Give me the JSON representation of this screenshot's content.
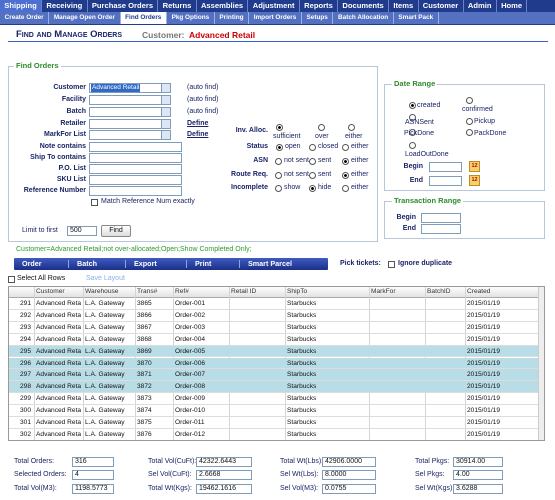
{
  "nav": {
    "main": [
      "Shipping",
      "Receiving",
      "Purchase Orders",
      "Returns",
      "Assemblies",
      "Adjustment",
      "Reports",
      "Documents",
      "Items",
      "Customer",
      "Admin",
      "Home"
    ],
    "main_current": "Shipping",
    "sub": [
      "Create Order",
      "Manage Open Order",
      "Find Orders",
      "Pkg Options",
      "Printing",
      "Import Orders",
      "Setups",
      "Batch Allocation",
      "Smart Pack"
    ],
    "sub_current": "Find Orders"
  },
  "header": {
    "title": "Find and Manage Orders",
    "customer_label": "Customer:",
    "customer": "Advanced Retail"
  },
  "find_orders": {
    "legend": "Find Orders",
    "fields": [
      {
        "label": "Customer",
        "value": "Advanced Retail",
        "note": "(auto find)"
      },
      {
        "label": "Facility",
        "note": "(auto find)"
      },
      {
        "label": "Batch",
        "note": "(auto find)"
      },
      {
        "label": "Retailer",
        "link": "Define"
      },
      {
        "label": "MarkFor List",
        "link": "Define"
      },
      {
        "label": "Note contains"
      },
      {
        "label": "Ship To contains"
      },
      {
        "label": "P.O. List"
      },
      {
        "label": "SKU List"
      },
      {
        "label": "Reference Number"
      }
    ],
    "match_exact": "Match Reference Num exactly",
    "limit_label": "Limit to first",
    "limit": "500",
    "find_button": "Find"
  },
  "filters": [
    {
      "label": "Inv. Alloc.",
      "options": [
        "sufficient",
        "over",
        "either"
      ],
      "selected": 0
    },
    {
      "label": "Status",
      "options": [
        "open",
        "closed",
        "either"
      ],
      "selected": 0
    },
    {
      "label": "ASN",
      "options": [
        "not sent",
        "sent",
        "either"
      ],
      "selected": 2
    },
    {
      "label": "Route Req.",
      "options": [
        "not sent",
        "sent",
        "either"
      ],
      "selected": 2
    },
    {
      "label": "Incomplete",
      "options": [
        "show",
        "hide",
        "either"
      ],
      "selected": 1
    }
  ],
  "date_range": {
    "legend": "Date Range",
    "options": [
      "created",
      "confirmed",
      "ASNSent",
      "Pickup",
      "PickDone",
      "PackDone",
      "LoadOutDone"
    ],
    "selected": 0,
    "begin": "Begin",
    "end": "End",
    "calendar": "12"
  },
  "transaction_range": {
    "legend": "Transaction Range",
    "begin": "Begin",
    "end": "End"
  },
  "criteria": "Customer=Advanced Retail;not over-allocated;Open;Show Completed Only;",
  "toolbar": {
    "buttons": [
      "Order",
      "Batch",
      "Export",
      "Print",
      "Smart Parcel"
    ],
    "pick_label": "Pick tickets:",
    "ignore": "Ignore duplicate"
  },
  "grid": {
    "select_all": "Select All Rows",
    "save_layout": "Save Layout",
    "columns": [
      "Customer",
      "Warehouse",
      "Trans#",
      "Ref#",
      "Retail ID",
      "ShipTo",
      "MarkFor",
      "BatchID",
      "Created"
    ],
    "rows": [
      {
        "cells": [
          "291",
          "Advanced Reta",
          "L.A. Gateway",
          "3865",
          "Order-001",
          "",
          "Starbucks",
          "",
          "",
          "2015/01/19"
        ]
      },
      {
        "cells": [
          "292",
          "Advanced Reta",
          "L.A. Gateway",
          "3866",
          "Order-002",
          "",
          "Starbucks",
          "",
          "",
          "2015/01/19"
        ]
      },
      {
        "cells": [
          "293",
          "Advanced Reta",
          "L.A. Gateway",
          "3867",
          "Order-003",
          "",
          "Starbucks",
          "",
          "",
          "2015/01/19"
        ]
      },
      {
        "cells": [
          "294",
          "Advanced Reta",
          "L.A. Gateway",
          "3868",
          "Order-004",
          "",
          "Starbucks",
          "",
          "",
          "2015/01/19"
        ]
      },
      {
        "cells": [
          "295",
          "Advanced Reta",
          "L.A. Gateway",
          "3869",
          "Order-005",
          "",
          "Starbucks",
          "",
          "",
          "2015/01/19"
        ],
        "selected": true
      },
      {
        "cells": [
          "296",
          "Advanced Reta",
          "L.A. Gateway",
          "3870",
          "Order-006",
          "",
          "Starbucks",
          "",
          "",
          "2015/01/19"
        ],
        "selected": true
      },
      {
        "cells": [
          "297",
          "Advanced Reta",
          "L.A. Gateway",
          "3871",
          "Order-007",
          "",
          "Starbucks",
          "",
          "",
          "2015/01/19"
        ],
        "selected": true
      },
      {
        "cells": [
          "298",
          "Advanced Reta",
          "L.A. Gateway",
          "3872",
          "Order-008",
          "",
          "Starbucks",
          "",
          "",
          "2015/01/19"
        ],
        "selected": true
      },
      {
        "cells": [
          "299",
          "Advanced Reta",
          "L.A. Gateway",
          "3873",
          "Order-009",
          "",
          "Starbucks",
          "",
          "",
          "2015/01/19"
        ]
      },
      {
        "cells": [
          "300",
          "Advanced Reta",
          "L.A. Gateway",
          "3874",
          "Order-010",
          "",
          "Starbucks",
          "",
          "",
          "2015/01/19"
        ]
      },
      {
        "cells": [
          "301",
          "Advanced Reta",
          "L.A. Gateway",
          "3875",
          "Order-011",
          "",
          "Starbucks",
          "",
          "",
          "2015/01/19"
        ]
      },
      {
        "cells": [
          "302",
          "Advanced Reta",
          "L.A. Gateway",
          "3876",
          "Order-012",
          "",
          "Starbucks",
          "",
          "",
          "2015/01/19"
        ]
      }
    ]
  },
  "totals": [
    [
      {
        "label": "Total Orders:",
        "value": "316"
      },
      {
        "label": "Selected Orders:",
        "value": "4"
      },
      {
        "label": "Total Vol(M3):",
        "value": "1198.5773"
      }
    ],
    [
      {
        "label": "Total Vol(CuFt):",
        "value": "42322.6443"
      },
      {
        "label": "Sel Vol(CuFt):",
        "value": "2.6668"
      },
      {
        "label": "Total Wt(Kgs):",
        "value": "19462.1616"
      }
    ],
    [
      {
        "label": "Total Wt(Lbs):",
        "value": "42906.0000"
      },
      {
        "label": "Sel Wt(Lbs):",
        "value": "8.0000"
      },
      {
        "label": "Sel Vol(M3):",
        "value": "0.0755"
      }
    ],
    [
      {
        "label": "Total Pkgs:",
        "value": "30914.00"
      },
      {
        "label": "Sel Pkgs:",
        "value": "4.00"
      },
      {
        "label": "Sel Wt(Kgs):",
        "value": "3.6288"
      }
    ]
  ]
}
